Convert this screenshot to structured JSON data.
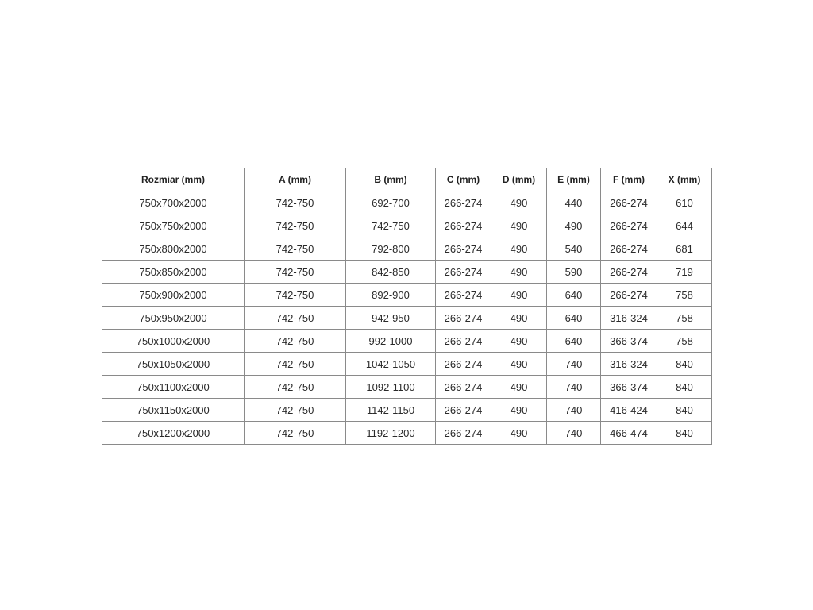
{
  "table": {
    "headers": [
      "Rozmiar (mm)",
      "A (mm)",
      "B (mm)",
      "C (mm)",
      "D (mm)",
      "E (mm)",
      "F (mm)",
      "X (mm)"
    ],
    "rows": [
      [
        "750x700x2000",
        "742-750",
        "692-700",
        "266-274",
        "490",
        "440",
        "266-274",
        "610"
      ],
      [
        "750x750x2000",
        "742-750",
        "742-750",
        "266-274",
        "490",
        "490",
        "266-274",
        "644"
      ],
      [
        "750x800x2000",
        "742-750",
        "792-800",
        "266-274",
        "490",
        "540",
        "266-274",
        "681"
      ],
      [
        "750x850x2000",
        "742-750",
        "842-850",
        "266-274",
        "490",
        "590",
        "266-274",
        "719"
      ],
      [
        "750x900x2000",
        "742-750",
        "892-900",
        "266-274",
        "490",
        "640",
        "266-274",
        "758"
      ],
      [
        "750x950x2000",
        "742-750",
        "942-950",
        "266-274",
        "490",
        "640",
        "316-324",
        "758"
      ],
      [
        "750x1000x2000",
        "742-750",
        "992-1000",
        "266-274",
        "490",
        "640",
        "366-374",
        "758"
      ],
      [
        "750x1050x2000",
        "742-750",
        "1042-1050",
        "266-274",
        "490",
        "740",
        "316-324",
        "840"
      ],
      [
        "750x1100x2000",
        "742-750",
        "1092-1100",
        "266-274",
        "490",
        "740",
        "366-374",
        "840"
      ],
      [
        "750x1150x2000",
        "742-750",
        "1142-1150",
        "266-274",
        "490",
        "740",
        "416-424",
        "840"
      ],
      [
        "750x1200x2000",
        "742-750",
        "1192-1200",
        "266-274",
        "490",
        "740",
        "466-474",
        "840"
      ]
    ]
  }
}
